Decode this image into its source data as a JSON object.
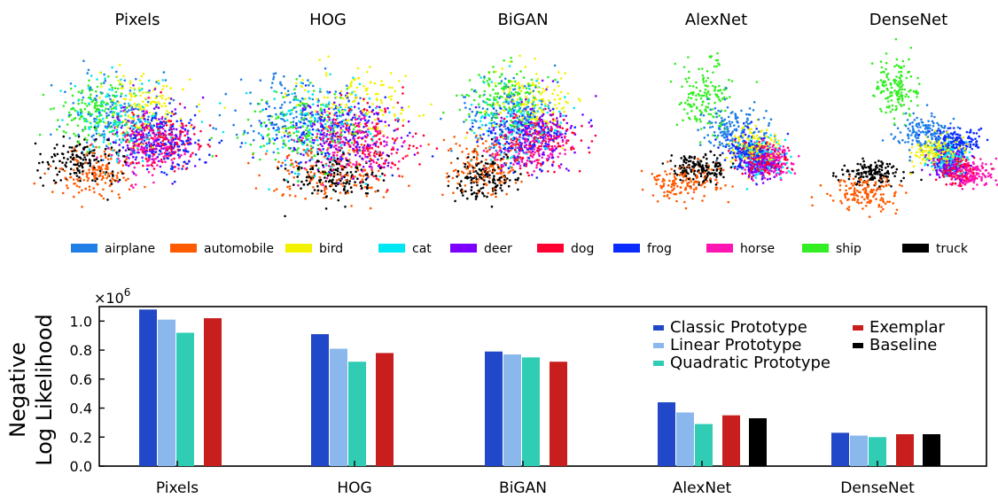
{
  "scatter": {
    "panels": [
      "Pixels",
      "HOG",
      "BiGAN",
      "AlexNet",
      "DenseNet"
    ],
    "classes": [
      "airplane",
      "automobile",
      "bird",
      "cat",
      "deer",
      "dog",
      "frog",
      "horse",
      "ship",
      "truck"
    ],
    "class_colors": [
      "#1f7fe6",
      "#ff5a00",
      "#f2f200",
      "#00e6f2",
      "#7b00ff",
      "#ff0033",
      "#0a2cff",
      "#ff14b4",
      "#33ee22",
      "#000000"
    ]
  },
  "chart_data": [
    {
      "type": "scatter",
      "title": "",
      "panels": [
        "Pixels",
        "HOG",
        "BiGAN",
        "AlexNet",
        "DenseNet"
      ],
      "series": [
        {
          "name": "airplane"
        },
        {
          "name": "automobile"
        },
        {
          "name": "bird"
        },
        {
          "name": "cat"
        },
        {
          "name": "deer"
        },
        {
          "name": "dog"
        },
        {
          "name": "frog"
        },
        {
          "name": "horse"
        },
        {
          "name": "ship"
        },
        {
          "name": "truck"
        }
      ],
      "legend": "bottom"
    },
    {
      "type": "bar",
      "categories": [
        "Pixels",
        "HOG",
        "BiGAN",
        "AlexNet",
        "DenseNet"
      ],
      "series": [
        {
          "name": "Classic Prototype",
          "color": "#2048c8",
          "values": [
            1.08,
            0.91,
            0.79,
            0.44,
            0.23
          ]
        },
        {
          "name": "Linear Prototype",
          "color": "#8ab8ec",
          "values": [
            1.01,
            0.81,
            0.77,
            0.37,
            0.21
          ]
        },
        {
          "name": "Quadratic Prototype",
          "color": "#30ccb4",
          "values": [
            0.92,
            0.72,
            0.75,
            0.29,
            0.2
          ]
        },
        {
          "name": "Exemplar",
          "color": "#c81e1e",
          "values": [
            1.02,
            0.78,
            0.72,
            0.35,
            0.22
          ]
        },
        {
          "name": "Baseline",
          "color": "#000000",
          "values": [
            null,
            null,
            null,
            0.33,
            0.22
          ]
        }
      ],
      "ylabel": [
        "Negative",
        "Log Likelihood"
      ],
      "yscale_label": "×10",
      "yscale_exponent": "6",
      "ylim": [
        0,
        1.1
      ],
      "yticks": [
        "0.0",
        "0.2",
        "0.4",
        "0.6",
        "0.8",
        "1.0"
      ],
      "legend": "top-right",
      "grid": false
    }
  ]
}
